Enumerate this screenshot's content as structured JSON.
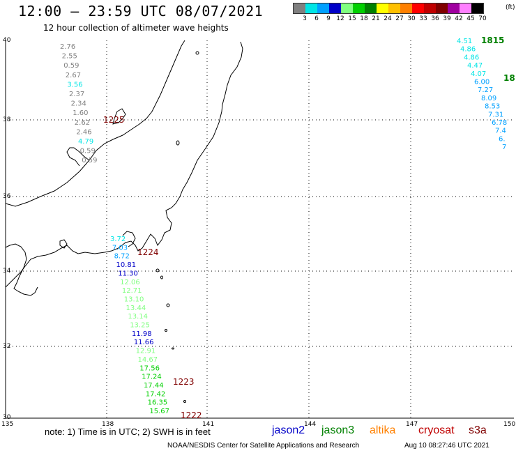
{
  "title": "12:00 – 23:59 UTC 08/07/2021",
  "subtitle": "12 hour collection of altimeter wave heights",
  "scale": {
    "unit": "(ft)",
    "labels": [
      "3",
      "6",
      "9",
      "12",
      "15",
      "18",
      "21",
      "24",
      "27",
      "30",
      "33",
      "36",
      "39",
      "42",
      "45",
      "70"
    ],
    "colors": [
      "#808080",
      "#00e5e5",
      "#00a0ff",
      "#0000c8",
      "#80ff80",
      "#00d000",
      "#008000",
      "#ffff00",
      "#ffc000",
      "#ff8000",
      "#ff0000",
      "#c00000",
      "#800000",
      "#a000a0",
      "#ff80ff",
      "#000000"
    ]
  },
  "axes": {
    "lat_labels": [
      "40",
      "38",
      "36",
      "34",
      "32",
      "30"
    ],
    "lon_labels": [
      "135",
      "138",
      "141",
      "144",
      "147",
      "150"
    ]
  },
  "tracks": [
    {
      "name": "west-track",
      "points": [
        {
          "v": "2.76",
          "c": "#808080"
        },
        {
          "v": "2.55",
          "c": "#808080"
        },
        {
          "v": "0.59",
          "c": "#808080"
        },
        {
          "v": "2.67",
          "c": "#808080"
        },
        {
          "v": "3.56",
          "c": "#00e5e5"
        },
        {
          "v": "2.37",
          "c": "#808080"
        },
        {
          "v": "2.34",
          "c": "#808080"
        },
        {
          "v": "1.60",
          "c": "#808080"
        },
        {
          "v": "2.62",
          "c": "#808080"
        },
        {
          "v": "2.46",
          "c": "#808080"
        },
        {
          "v": "4.79",
          "c": "#00e5e5"
        },
        {
          "v": "0.59",
          "c": "#808080"
        },
        {
          "v": "0.59",
          "c": "#808080"
        }
      ],
      "time": "1225",
      "time_color": "#800000"
    },
    {
      "name": "south-track",
      "points": [
        {
          "v": "3.72",
          "c": "#00e5e5"
        },
        {
          "v": "7.03",
          "c": "#00a0ff"
        },
        {
          "v": "8.72",
          "c": "#00a0ff"
        },
        {
          "v": "10.81",
          "c": "#0000c8"
        },
        {
          "v": "11.30",
          "c": "#0000c8"
        },
        {
          "v": "12.06",
          "c": "#80ff80"
        },
        {
          "v": "12.71",
          "c": "#80ff80"
        },
        {
          "v": "13.10",
          "c": "#80ff80"
        },
        {
          "v": "13.44",
          "c": "#80ff80"
        },
        {
          "v": "13.14",
          "c": "#80ff80"
        },
        {
          "v": "13.25",
          "c": "#80ff80"
        },
        {
          "v": "11.98",
          "c": "#0000c8"
        },
        {
          "v": "11.66",
          "c": "#0000c8"
        },
        {
          "v": "12.91",
          "c": "#80ff80"
        },
        {
          "v": "14.67",
          "c": "#80ff80"
        },
        {
          "v": "17.56",
          "c": "#00d000"
        },
        {
          "v": "17.24",
          "c": "#00d000"
        },
        {
          "v": "17.44",
          "c": "#00d000"
        },
        {
          "v": "17.42",
          "c": "#00d000"
        },
        {
          "v": "16.35",
          "c": "#00d000"
        },
        {
          "v": "15.67",
          "c": "#00d000"
        }
      ],
      "times": [
        {
          "t": "1224",
          "c": "#800000"
        },
        {
          "t": "1223",
          "c": "#800000"
        },
        {
          "t": "1222",
          "c": "#800000"
        }
      ]
    },
    {
      "name": "east-track",
      "points": [
        {
          "v": "4.51",
          "c": "#00e5e5"
        },
        {
          "v": "4.86",
          "c": "#00e5e5"
        },
        {
          "v": "4.86",
          "c": "#00e5e5"
        },
        {
          "v": "4.47",
          "c": "#00e5e5"
        },
        {
          "v": "4.07",
          "c": "#00e5e5"
        },
        {
          "v": "6.00",
          "c": "#00a0ff"
        },
        {
          "v": "7.27",
          "c": "#00a0ff"
        },
        {
          "v": "8.09",
          "c": "#00a0ff"
        },
        {
          "v": "8.53",
          "c": "#00a0ff"
        },
        {
          "v": "7.31",
          "c": "#00a0ff"
        },
        {
          "v": "6.78",
          "c": "#00a0ff"
        },
        {
          "v": "7.4",
          "c": "#00a0ff"
        },
        {
          "v": "6.",
          "c": "#00a0ff"
        },
        {
          "v": "7",
          "c": "#00a0ff"
        }
      ],
      "times": [
        {
          "t": "1815",
          "c": "#008000"
        },
        {
          "t": "18",
          "c": "#008000"
        }
      ]
    }
  ],
  "footer": {
    "note": "note: 1) Time is in UTC; 2) SWH is in feet",
    "legend": [
      {
        "label": "jason2",
        "color": "#0000c8"
      },
      {
        "label": "jason3",
        "color": "#008000"
      },
      {
        "label": "altika",
        "color": "#ff8000"
      },
      {
        "label": "cryosat",
        "color": "#c00000"
      },
      {
        "label": "s3a",
        "color": "#800000"
      }
    ],
    "credit": "NOAA/NESDIS Center for Satellite Applications and Research",
    "timestamp": "Aug 10 08:27:46 UTC 2021"
  }
}
